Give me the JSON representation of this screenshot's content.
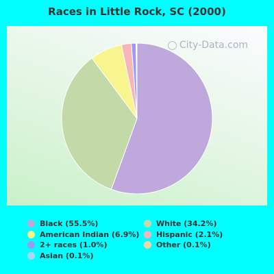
{
  "chart_data": {
    "type": "pie",
    "title": "Races in Little Rock, SC (2000)",
    "slices": [
      {
        "label": "Black (55.5%)",
        "value": 55.5,
        "color": "#bfa9dc"
      },
      {
        "label": "White (34.2%)",
        "value": 34.2,
        "color": "#c4d9a8"
      },
      {
        "label": "American Indian (6.9%)",
        "value": 6.9,
        "color": "#f8f58e"
      },
      {
        "label": "Hispanic (2.1%)",
        "value": 2.1,
        "color": "#f6b5b8"
      },
      {
        "label": "2+ races (1.0%)",
        "value": 1.0,
        "color": "#9b9cf0"
      },
      {
        "label": "Other (0.1%)",
        "value": 0.1,
        "color": "#f5d3a8"
      },
      {
        "label": "Asian (0.1%)",
        "value": 0.1,
        "color": "#aad6f3"
      }
    ],
    "legend_order": [
      0,
      1,
      2,
      3,
      4,
      5,
      6
    ]
  },
  "watermark": "City-Data.com"
}
